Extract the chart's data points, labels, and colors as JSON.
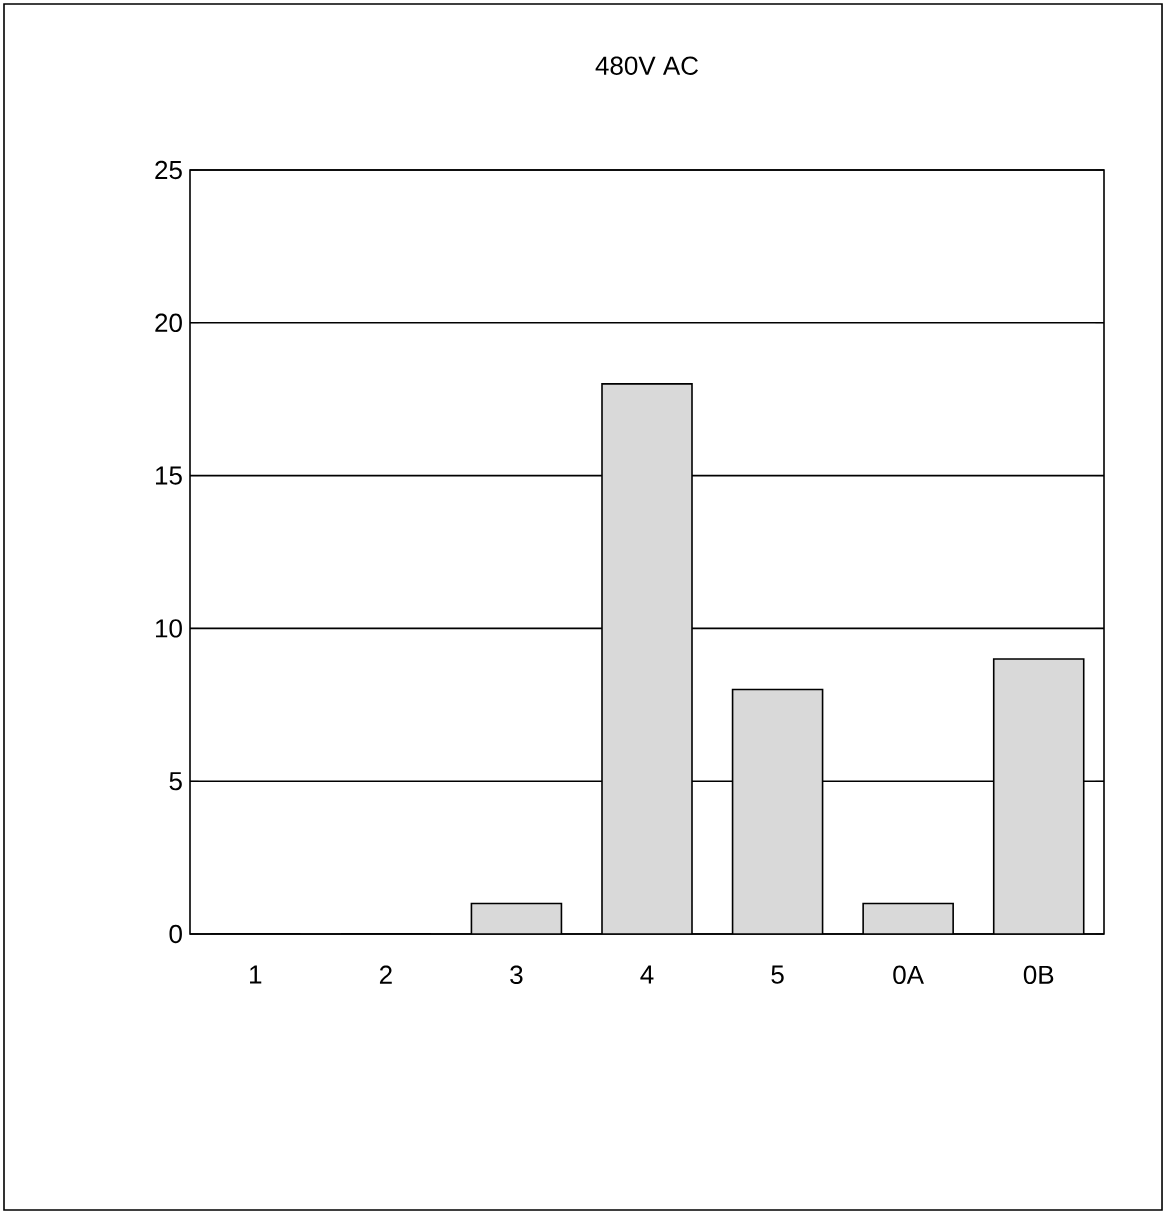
{
  "chart_data": {
    "type": "bar",
    "title": "480V AC",
    "categories": [
      "1",
      "2",
      "3",
      "4",
      "5",
      "0A",
      "0B"
    ],
    "values": [
      0,
      0,
      1,
      18,
      8,
      1,
      9
    ],
    "color": "#d9d9d9",
    "ylim": [
      0,
      25
    ],
    "yticks": [
      0,
      5,
      10,
      15,
      20,
      25
    ],
    "grid": "y"
  }
}
